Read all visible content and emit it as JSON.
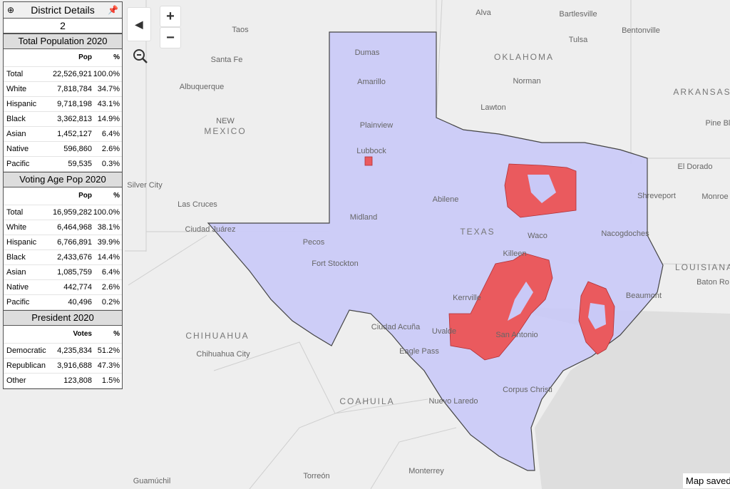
{
  "panel": {
    "title": "District Details",
    "district": "2",
    "sections": [
      {
        "title": "Total Population 2020",
        "columns": [
          "Pop",
          "%"
        ],
        "rows": [
          [
            "Total",
            "22,526,921",
            "100.0%"
          ],
          [
            "White",
            "7,818,784",
            "34.7%"
          ],
          [
            "Hispanic",
            "9,718,198",
            "43.1%"
          ],
          [
            "Black",
            "3,362,813",
            "14.9%"
          ],
          [
            "Asian",
            "1,452,127",
            "6.4%"
          ],
          [
            "Native",
            "596,860",
            "2.6%"
          ],
          [
            "Pacific",
            "59,535",
            "0.3%"
          ]
        ]
      },
      {
        "title": "Voting Age Pop 2020",
        "columns": [
          "Pop",
          "%"
        ],
        "rows": [
          [
            "Total",
            "16,959,282",
            "100.0%"
          ],
          [
            "White",
            "6,464,968",
            "38.1%"
          ],
          [
            "Hispanic",
            "6,766,891",
            "39.9%"
          ],
          [
            "Black",
            "2,433,676",
            "14.4%"
          ],
          [
            "Asian",
            "1,085,759",
            "6.4%"
          ],
          [
            "Native",
            "442,774",
            "2.6%"
          ],
          [
            "Pacific",
            "40,496",
            "0.2%"
          ]
        ]
      },
      {
        "title": "President 2020",
        "columns": [
          "Votes",
          "%"
        ],
        "rows": [
          [
            "Democratic",
            "4,235,834",
            "51.2%"
          ],
          [
            "Republican",
            "3,916,688",
            "47.3%"
          ],
          [
            "Other",
            "123,808",
            "1.5%"
          ]
        ]
      }
    ]
  },
  "map": {
    "labels": [
      "Alva",
      "Bartlesville",
      "Bentonville",
      "Taos",
      "Tulsa",
      "Dumas",
      "OKLAHOMA",
      "Santa Fe",
      "Amarillo",
      "Albuquerque",
      "Norman",
      "ARKANSAS",
      "Lawton",
      "NEW",
      "MEXICO",
      "Plainview",
      "Pine Blu",
      "Lubbock",
      "El Dorado",
      "Silver City",
      "Abilene",
      "Shreveport",
      "Monroe",
      "Las Cruces",
      "Midland",
      "Ciudad Juárez",
      "TEXAS",
      "Waco",
      "Nacogdoches",
      "Pecos",
      "Killeen",
      "Fort Stockton",
      "LOUISIANA",
      "Baton Ro",
      "Kerrville",
      "Beaumont",
      "CHIHUAHUA",
      "Ciudad Acuña",
      "Uvalde",
      "San Antonio",
      "Chihuahua City",
      "Eagle Pass",
      "Corpus Christi",
      "COAHUILA",
      "Nuevo Laredo",
      "Monterrey",
      "Torreón",
      "Guamúchil"
    ],
    "zoom_in": "+",
    "zoom_out": "−",
    "status": "Map saved"
  }
}
